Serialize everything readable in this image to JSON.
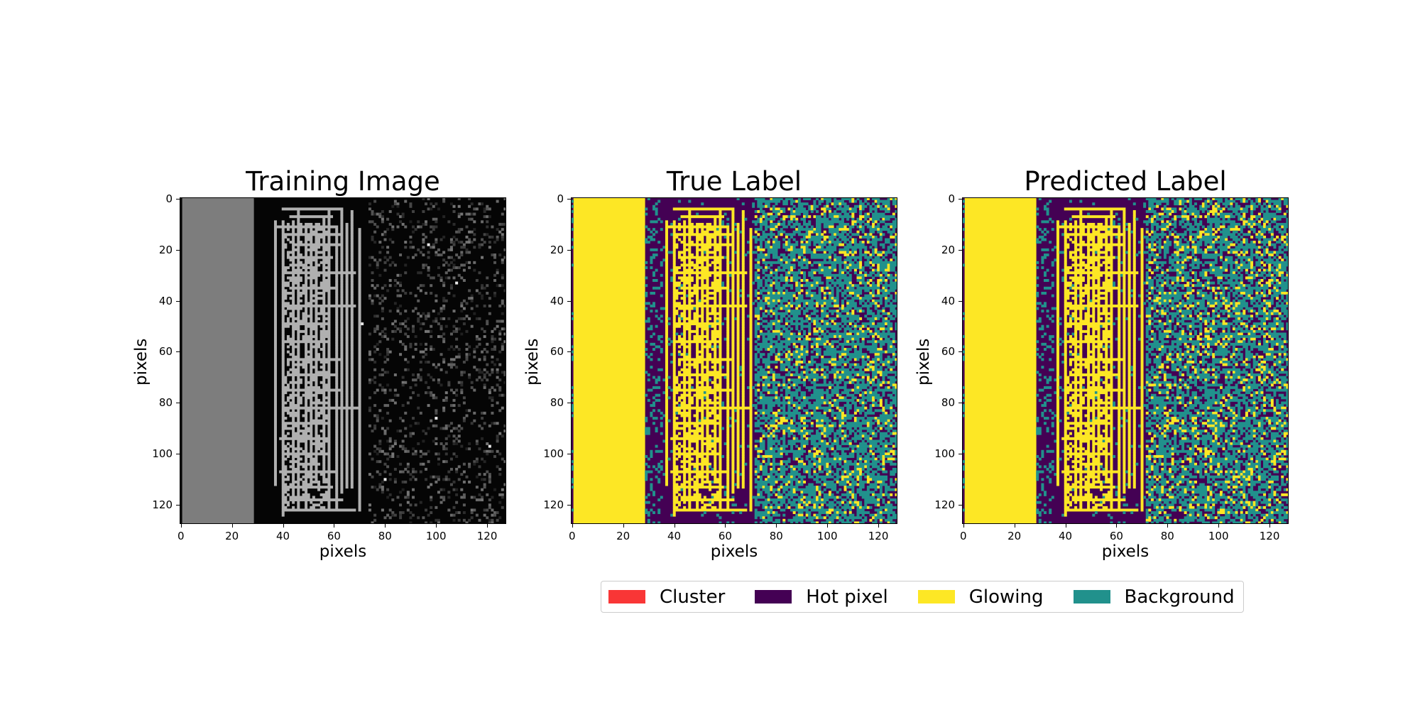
{
  "colors": {
    "cluster": "#f93636",
    "hot_pixel": "#440154",
    "glowing": "#fde725",
    "background": "#21918c"
  },
  "chart_data": [
    {
      "type": "heatmap",
      "title": "Training Image",
      "xlabel": "pixels",
      "ylabel": "pixels",
      "xlim": [
        0,
        128
      ],
      "ylim": [
        128,
        0
      ],
      "xticks": [
        0,
        20,
        40,
        60,
        80,
        100,
        120
      ],
      "yticks": [
        0,
        20,
        40,
        60,
        80,
        100,
        120
      ],
      "colormap": "gray",
      "regions": [
        {
          "x_range": [
            0,
            28
          ],
          "description": "uniform gray glowing column",
          "value": 0.5
        },
        {
          "x_range": [
            33,
            71
          ],
          "description": "bright grid lines on black",
          "value": 0.68
        },
        {
          "x_range": [
            74,
            128
          ],
          "description": "sparse faint specks on black",
          "value": 0.12
        }
      ]
    },
    {
      "type": "heatmap",
      "title": "True Label",
      "xlabel": "pixels",
      "ylabel": "pixels",
      "xlim": [
        0,
        128
      ],
      "ylim": [
        128,
        0
      ],
      "xticks": [
        0,
        20,
        40,
        60,
        80,
        100,
        120
      ],
      "yticks": [
        0,
        20,
        40,
        60,
        80,
        100,
        120
      ]
    },
    {
      "type": "heatmap",
      "title": "Predicted Label",
      "xlabel": "pixels",
      "ylabel": "pixels",
      "xlim": [
        0,
        128
      ],
      "ylim": [
        128,
        0
      ],
      "xticks": [
        0,
        20,
        40,
        60,
        80,
        100,
        120
      ],
      "yticks": [
        0,
        20,
        40,
        60,
        80,
        100,
        120
      ]
    }
  ],
  "legend": {
    "placement": "bottom-center",
    "items": [
      {
        "label": "Cluster",
        "color": "#f93636"
      },
      {
        "label": "Hot pixel",
        "color": "#440154"
      },
      {
        "label": "Glowing",
        "color": "#fde725"
      },
      {
        "label": "Background",
        "color": "#21918c"
      }
    ]
  }
}
